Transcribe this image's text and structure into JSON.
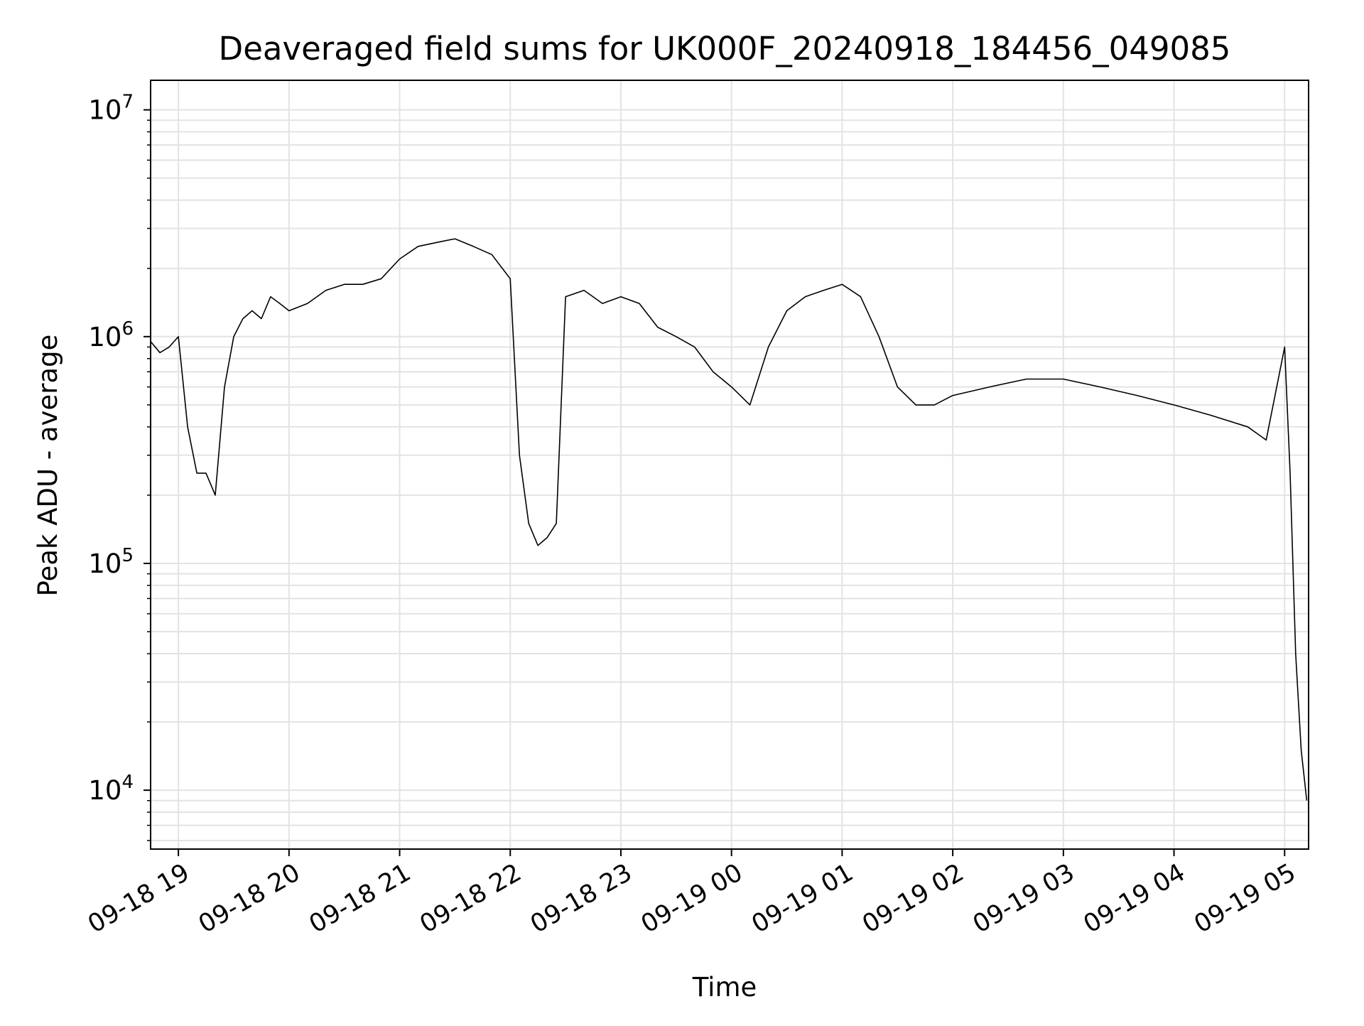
{
  "chart_data": {
    "type": "line",
    "title": "Deaveraged field sums for UK000F_20240918_184456_049085",
    "xlabel": "Time",
    "ylabel": "Peak ADU - average",
    "xlim": [
      "2024-09-18T18:44:56",
      "2024-09-19T05:13:00"
    ],
    "ylim": [
      5500,
      13500000
    ],
    "y_scale": "log",
    "grid": true,
    "grid_which": "both",
    "x_ticks": [
      "2024-09-18T19:00",
      "2024-09-18T20:00",
      "2024-09-18T21:00",
      "2024-09-18T22:00",
      "2024-09-18T23:00",
      "2024-09-19T00:00",
      "2024-09-19T01:00",
      "2024-09-19T02:00",
      "2024-09-19T03:00",
      "2024-09-19T04:00",
      "2024-09-19T05:00"
    ],
    "x_tick_labels": [
      "09-18 19",
      "09-18 20",
      "09-18 21",
      "09-18 22",
      "09-18 23",
      "09-19 00",
      "09-19 01",
      "09-19 02",
      "09-19 03",
      "09-19 04",
      "09-19 05"
    ],
    "y_ticks": [
      10000,
      100000,
      1000000,
      10000000
    ],
    "y_tick_labels": [
      {
        "base": "10",
        "exp": "4"
      },
      {
        "base": "10",
        "exp": "5"
      },
      {
        "base": "10",
        "exp": "6"
      },
      {
        "base": "10",
        "exp": "7"
      }
    ],
    "line_color": "#000000",
    "series": [
      {
        "x": [
          "2024-09-18T18:45",
          "2024-09-18T18:50",
          "2024-09-18T18:55",
          "2024-09-18T19:00",
          "2024-09-18T19:05",
          "2024-09-18T19:10",
          "2024-09-18T19:15",
          "2024-09-18T19:20",
          "2024-09-18T19:25",
          "2024-09-18T19:30",
          "2024-09-18T19:35",
          "2024-09-18T19:40",
          "2024-09-18T19:45",
          "2024-09-18T19:50",
          "2024-09-18T19:55",
          "2024-09-18T20:00",
          "2024-09-18T20:10",
          "2024-09-18T20:20",
          "2024-09-18T20:30",
          "2024-09-18T20:40",
          "2024-09-18T20:50",
          "2024-09-18T21:00",
          "2024-09-18T21:10",
          "2024-09-18T21:20",
          "2024-09-18T21:30",
          "2024-09-18T21:40",
          "2024-09-18T21:50",
          "2024-09-18T22:00",
          "2024-09-18T22:05",
          "2024-09-18T22:10",
          "2024-09-18T22:15",
          "2024-09-18T22:20",
          "2024-09-18T22:25",
          "2024-09-18T22:30",
          "2024-09-18T22:40",
          "2024-09-18T22:50",
          "2024-09-18T23:00",
          "2024-09-18T23:10",
          "2024-09-18T23:20",
          "2024-09-18T23:30",
          "2024-09-18T23:40",
          "2024-09-18T23:50",
          "2024-09-19T00:00",
          "2024-09-19T00:10",
          "2024-09-19T00:20",
          "2024-09-19T00:30",
          "2024-09-19T00:40",
          "2024-09-19T00:50",
          "2024-09-19T01:00",
          "2024-09-19T01:10",
          "2024-09-19T01:20",
          "2024-09-19T01:30",
          "2024-09-19T01:40",
          "2024-09-19T01:50",
          "2024-09-19T02:00",
          "2024-09-19T02:20",
          "2024-09-19T02:40",
          "2024-09-19T03:00",
          "2024-09-19T03:20",
          "2024-09-19T03:40",
          "2024-09-19T04:00",
          "2024-09-19T04:20",
          "2024-09-19T04:40",
          "2024-09-19T04:50",
          "2024-09-19T05:00",
          "2024-09-19T05:03",
          "2024-09-19T05:06",
          "2024-09-19T05:09",
          "2024-09-19T05:12"
        ],
        "y": [
          950000,
          850000,
          900000,
          1000000,
          400000,
          250000,
          250000,
          200000,
          600000,
          1000000,
          1200000,
          1300000,
          1200000,
          1500000,
          1400000,
          1300000,
          1400000,
          1600000,
          1700000,
          1700000,
          1800000,
          2200000,
          2500000,
          2600000,
          2700000,
          2500000,
          2300000,
          1800000,
          300000,
          150000,
          120000,
          130000,
          150000,
          1500000,
          1600000,
          1400000,
          1500000,
          1400000,
          1100000,
          1000000,
          900000,
          700000,
          600000,
          500000,
          900000,
          1300000,
          1500000,
          1600000,
          1700000,
          1500000,
          1000000,
          600000,
          500000,
          500000,
          550000,
          600000,
          650000,
          650000,
          600000,
          550000,
          500000,
          450000,
          400000,
          350000,
          900000,
          250000,
          40000,
          15000,
          9000
        ]
      }
    ]
  }
}
